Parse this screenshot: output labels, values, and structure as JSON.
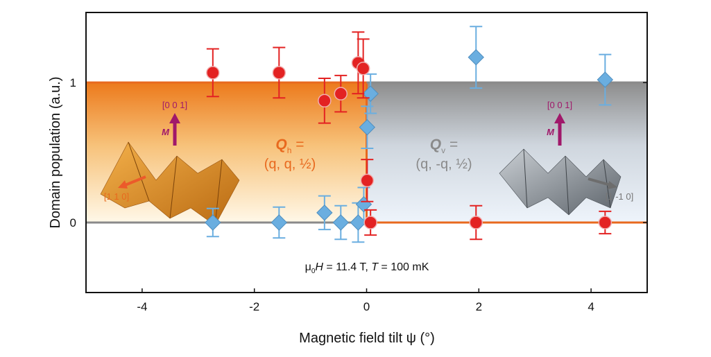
{
  "chart_data": {
    "type": "scatter",
    "xlabel": "Magnetic field tilt ψ (°)",
    "ylabel": "Domain population (a.u.)",
    "xlim": [
      -5,
      5
    ],
    "ylim": [
      -0.5,
      1.5
    ],
    "xticks": [
      "-4",
      "-2",
      "0",
      "2",
      "4"
    ],
    "yticks": [
      "0",
      "1"
    ],
    "grid": false,
    "colors": {
      "qh": "#e8691e",
      "qv": "#8a8a8a",
      "red": "#e32222",
      "blue": "#6aaee0",
      "magenta": "#a0186a"
    },
    "annotation": {
      "mu": "μ",
      "sub0": "0",
      "H": "H",
      "eq1": " = 11.4 T,  ",
      "T": "T",
      "eq2": " = 100 mK"
    },
    "regions": {
      "qh": {
        "label_Q": "Q",
        "label_sub": "h",
        "label_eq": " =",
        "label_vec": "(q, q, ½)",
        "dir_up": "[0 0 1]",
        "dir_side": "[1 1 0]",
        "m": "M",
        "xrange": [
          -5,
          0
        ]
      },
      "qv": {
        "label_Q": "Q",
        "label_sub": "v",
        "label_eq": " =",
        "label_vec": "(q, -q, ½)",
        "dir_up": "[0 0 1]",
        "dir_side": "[1 -1 0]",
        "m": "M",
        "xrange": [
          0,
          5
        ]
      }
    },
    "series": [
      {
        "marker": "circle",
        "color": "#e32222",
        "x": [
          -2.74,
          -1.56,
          -0.75,
          -0.46,
          -0.15,
          -0.06,
          0.01,
          0.07,
          1.95,
          4.25
        ],
        "y": [
          1.07,
          1.07,
          0.87,
          0.92,
          1.14,
          1.1,
          0.3,
          0.0,
          0.0,
          0.0
        ],
        "err": [
          0.17,
          0.18,
          0.16,
          0.13,
          0.22,
          0.21,
          0.15,
          0.09,
          0.12,
          0.08
        ]
      },
      {
        "marker": "diamond",
        "color": "#6aaee0",
        "x": [
          -2.74,
          -1.56,
          -0.75,
          -0.46,
          -0.15,
          -0.05,
          0.01,
          0.07,
          1.95,
          4.25
        ],
        "y": [
          0.0,
          0.0,
          0.07,
          0.0,
          0.0,
          0.13,
          0.68,
          0.92,
          1.18,
          1.02
        ],
        "err": [
          0.1,
          0.11,
          0.12,
          0.12,
          0.14,
          0.12,
          0.15,
          0.14,
          0.22,
          0.18
        ]
      }
    ]
  }
}
